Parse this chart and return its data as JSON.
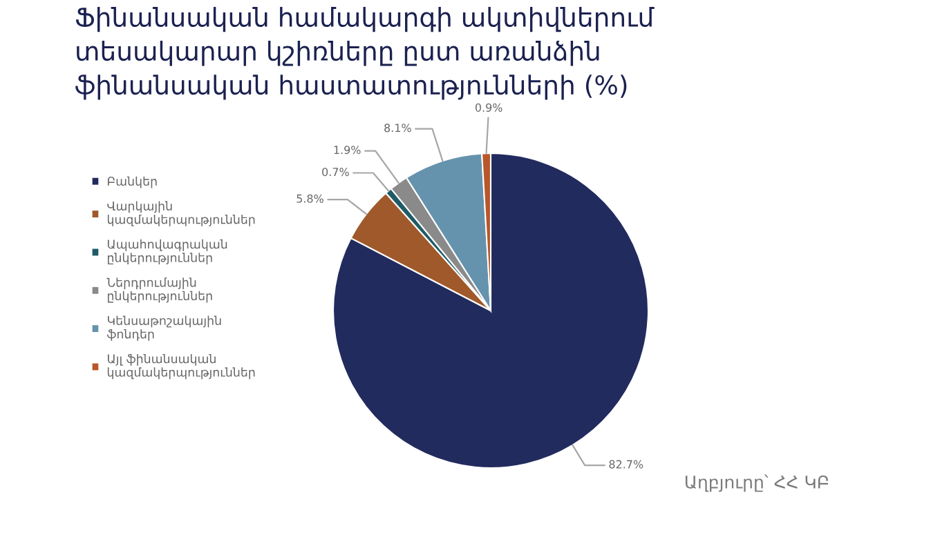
{
  "chart_data": {
    "type": "pie",
    "title": "Ֆինանսական համակարգի ակտիվներում տեսակարար կշիռները ըստ առանձին ֆինանսական հաստատությունների (%)",
    "categories": [
      "Բանկեր",
      "Վարկային կազմակերպություններ",
      "Ապահովագրական ընկերություններ",
      "Ներդրումային ընկերություններ",
      "Կենսաթոշակային ֆոնդեր",
      "Այլ ֆինանսական կազմակերպություններ"
    ],
    "values": [
      82.7,
      5.8,
      0.7,
      1.9,
      8.1,
      0.9
    ],
    "colors": [
      "#222b5e",
      "#a0592a",
      "#1f5b66",
      "#8a8a8a",
      "#6593ae",
      "#b9572a"
    ],
    "value_labels": [
      "82.7%",
      "5.8%",
      "0.7%",
      "1.9%",
      "8.1%",
      "0.9%"
    ],
    "legend": "left",
    "annotations": [
      "Աղբյուրը՝ ՀՀ ԿԲ"
    ]
  }
}
